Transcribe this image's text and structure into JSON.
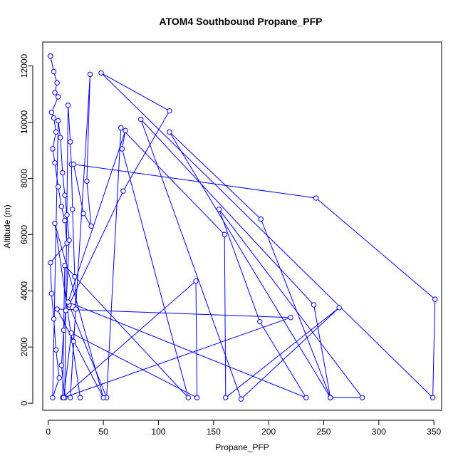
{
  "chart_data": {
    "type": "line",
    "title": "ATOM4 Southbound Propane_PFP",
    "xlabel": "Propane_PFP",
    "ylabel": "Altitude (m)",
    "xlim": [
      -5,
      357
    ],
    "ylim": [
      -250,
      12850
    ],
    "xticks": [
      0,
      50,
      100,
      150,
      200,
      250,
      300,
      350
    ],
    "yticks": [
      0,
      2000,
      4000,
      6000,
      8000,
      10000,
      12000
    ],
    "grid": false,
    "series": [
      {
        "color": "#0000ff",
        "marker": "open-circle",
        "points": [
          [
            2,
            12350
          ],
          [
            5,
            11800
          ],
          [
            8,
            11400
          ],
          [
            6,
            11050
          ],
          [
            9,
            10900
          ],
          [
            3,
            10350
          ],
          [
            5,
            10150
          ],
          [
            7,
            9650
          ],
          [
            4,
            9050
          ],
          [
            6,
            8550
          ],
          [
            9,
            7700
          ],
          [
            12,
            7000
          ],
          [
            15,
            6500
          ],
          [
            17,
            5700
          ],
          [
            2,
            5000
          ],
          [
            3,
            3900
          ],
          [
            5,
            3000
          ],
          [
            7,
            1900
          ],
          [
            10,
            900
          ],
          [
            4,
            200
          ],
          [
            9,
            10050
          ],
          [
            11,
            9450
          ],
          [
            13,
            8200
          ],
          [
            15,
            7400
          ],
          [
            17,
            6700
          ],
          [
            19,
            5800
          ],
          [
            16,
            3300
          ],
          [
            14,
            2600
          ],
          [
            12,
            1350
          ],
          [
            15,
            200
          ],
          [
            18,
            10600
          ],
          [
            20,
            9300
          ],
          [
            21,
            8500
          ],
          [
            22,
            6900
          ],
          [
            24,
            4500
          ],
          [
            25,
            3350
          ],
          [
            23,
            2200
          ],
          [
            20,
            200
          ],
          [
            38,
            11700
          ],
          [
            35,
            7900
          ],
          [
            39,
            6300
          ],
          [
            32,
            6750
          ],
          [
            23,
            8500
          ],
          [
            243,
            7300
          ],
          [
            351,
            3700
          ],
          [
            349,
            200
          ],
          [
            48,
            11750
          ],
          [
            110,
            10400
          ],
          [
            68,
            7550
          ],
          [
            19,
            3500
          ],
          [
            53,
            200
          ],
          [
            66,
            9800
          ],
          [
            160,
            6000
          ],
          [
            161,
            200
          ],
          [
            264,
            3400
          ],
          [
            175,
            150
          ],
          [
            84,
            10100
          ],
          [
            241,
            3500
          ],
          [
            256,
            200
          ],
          [
            110,
            9650
          ],
          [
            193,
            6550
          ],
          [
            256,
            200
          ],
          [
            285,
            200
          ],
          [
            155,
            6900
          ],
          [
            192,
            2900
          ],
          [
            234,
            200
          ],
          [
            18,
            3600
          ],
          [
            70,
            9700
          ],
          [
            67,
            9050
          ],
          [
            127,
            200
          ],
          [
            15,
            4900
          ],
          [
            13,
            200
          ],
          [
            134,
            4350
          ],
          [
            135,
            200
          ],
          [
            21,
            2500
          ],
          [
            14,
            200
          ],
          [
            220,
            3050
          ],
          [
            8,
            3350
          ],
          [
            50,
            200
          ],
          [
            6,
            6400
          ],
          [
            29,
            200
          ]
        ]
      }
    ]
  }
}
